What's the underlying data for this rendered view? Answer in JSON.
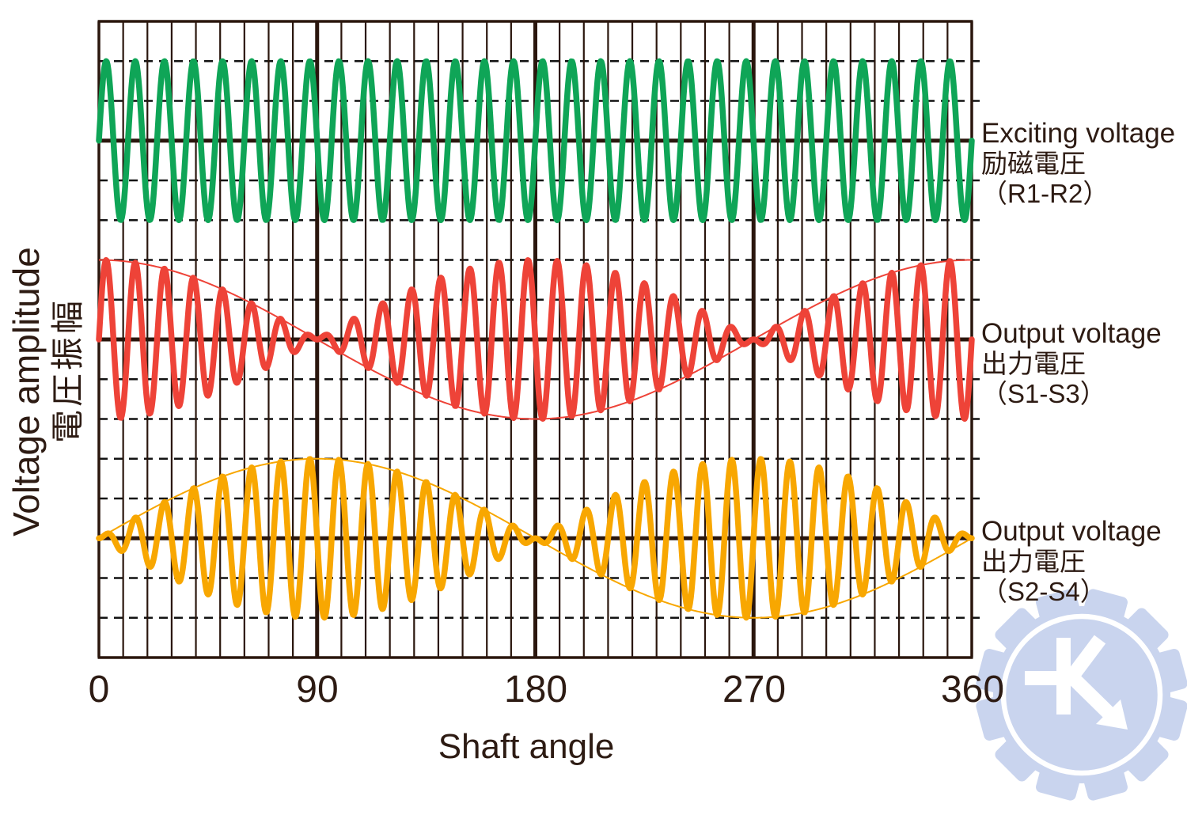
{
  "y_axis": {
    "label_en": "Voltage amplitude",
    "label_ja": "電圧振幅"
  },
  "x_axis": {
    "label": "Shaft angle",
    "ticks": [
      "0",
      "90",
      "180",
      "270",
      "360"
    ]
  },
  "series_labels": [
    {
      "en": "Exciting voltage",
      "ja": "励磁電圧",
      "terminals": "（R1-R2）"
    },
    {
      "en": "Output voltage",
      "ja": "出力電圧",
      "terminals": "（S1-S3）"
    },
    {
      "en": "Output voltage",
      "ja": "出力電圧",
      "terminals": "（S2-S4）"
    }
  ],
  "watermark": {
    "symbol": "K",
    "color": "#c9d4ee",
    "detail_color": "#ffffff"
  },
  "colors": {
    "text": "#2d1b13",
    "grid_solid": "#2a160d",
    "grid_dashed": "#121212",
    "background": "#ffffff",
    "exciting_green": "#0fa557",
    "output_red": "#ee4338",
    "output_yellow": "#f8a701"
  },
  "chart_data": {
    "type": "line",
    "xlabel": "Shaft angle",
    "ylabel": "Voltage amplitude",
    "x": {
      "min_deg": 0,
      "max_deg": 360,
      "ticks_deg": [
        0,
        90,
        180,
        270,
        360
      ],
      "minor_grid_step_deg": 10,
      "major_grid_deg": [
        90,
        180,
        270
      ]
    },
    "y": {
      "bands": 3,
      "band_center_solid_line": true,
      "amplitude_dashed_gridlines": [
        0.5,
        1.0
      ]
    },
    "grid": {
      "on": true,
      "vertical_minor_every_deg": 10,
      "horizontal_dashed": true
    },
    "carrier_cycles_per_rotation": 30,
    "series": [
      {
        "name": "Exciting voltage (R1-R2)",
        "band": 0,
        "color": "#0fa557",
        "amplitude": 1,
        "modulation": "constant",
        "formula": "v(θ) = A·sin(30θ)",
        "envelope_shown": false
      },
      {
        "name": "Output voltage (S1-S3)",
        "band": 1,
        "color": "#ee4338",
        "amplitude": 1,
        "modulation": "cos",
        "formula": "v(θ) = A·cos(θ)·sin(30θ)",
        "envelope_shown": true
      },
      {
        "name": "Output voltage (S2-S4)",
        "band": 2,
        "color": "#f8a701",
        "amplitude": 1,
        "modulation": "sin",
        "formula": "v(θ) = A·sin(θ)·sin(30θ)",
        "envelope_shown": true
      }
    ]
  }
}
